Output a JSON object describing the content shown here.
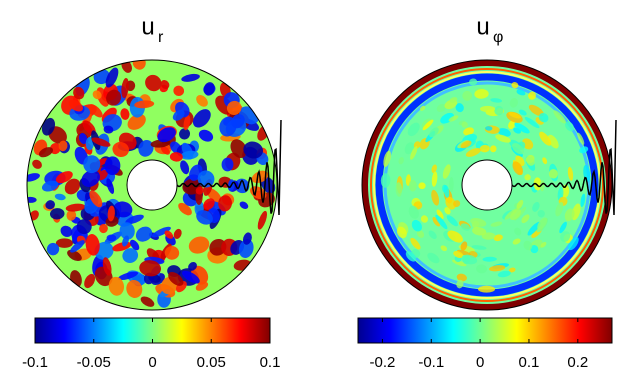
{
  "chart_data": [
    {
      "type": "colormap",
      "title": "u",
      "title_subscript": "r",
      "clim": [
        -0.1,
        0.1
      ],
      "cticks": [
        -0.1,
        -0.05,
        0,
        0.05,
        0.1
      ]
    },
    {
      "type": "colormap",
      "title": "u",
      "title_subscript": "φ",
      "clim": [
        -0.25,
        0.27
      ],
      "cticks": [
        -0.2,
        -0.1,
        0,
        0.1,
        0.2
      ]
    }
  ]
}
